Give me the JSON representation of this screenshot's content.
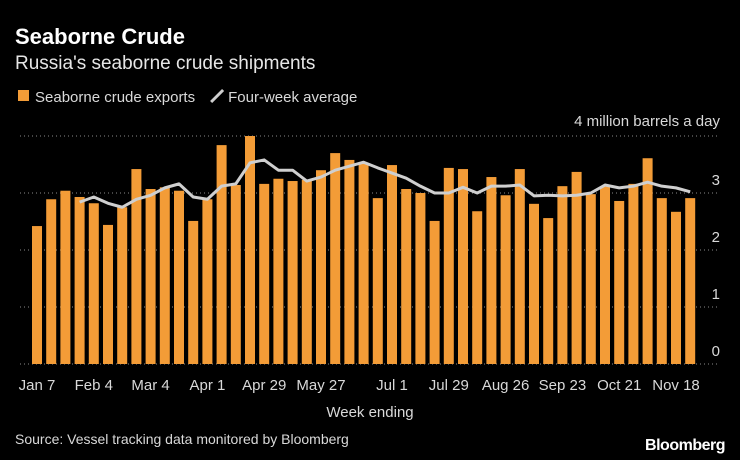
{
  "chart_data": {
    "type": "bar",
    "title": "Seaborne Crude",
    "subtitle": "Russia's seaborne crude shipments",
    "x_label": "Week ending",
    "source": "Source: Vessel tracking data monitored by Bloomberg",
    "brand": "Bloomberg",
    "categories": [
      "Jan 7",
      null,
      null,
      null,
      "Feb 4",
      null,
      null,
      null,
      "Mar 4",
      null,
      null,
      null,
      "Apr 1",
      null,
      null,
      null,
      "Apr 29",
      null,
      null,
      null,
      "May 27",
      null,
      null,
      null,
      null,
      "Jul 1",
      null,
      null,
      null,
      "Jul 29",
      null,
      null,
      null,
      "Aug 26",
      null,
      null,
      null,
      "Sep 23",
      null,
      null,
      null,
      "Oct 21",
      null,
      null,
      null,
      "Nov 18",
      null
    ],
    "series": [
      {
        "name": "Seaborne crude exports",
        "type": "bar",
        "color": "#f39c37",
        "values": [
          2.42,
          2.89,
          3.04,
          2.93,
          2.82,
          2.44,
          2.75,
          3.42,
          3.07,
          3.1,
          3.04,
          2.51,
          2.89,
          3.84,
          3.14,
          4.0,
          3.16,
          3.25,
          3.21,
          3.23,
          3.4,
          3.7,
          3.58,
          3.53,
          2.91,
          3.49,
          3.07,
          3.0,
          2.51,
          3.44,
          3.42,
          2.68,
          3.28,
          2.96,
          3.42,
          2.81,
          2.56,
          3.12,
          3.37,
          2.98,
          3.12,
          2.86,
          3.16,
          3.61,
          2.91,
          2.67,
          2.91
        ]
      },
      {
        "name": "Four-week average",
        "type": "line",
        "color": "#cfcfcf",
        "values": [
          null,
          null,
          null,
          2.84,
          2.93,
          2.82,
          2.75,
          2.89,
          2.96,
          3.09,
          3.16,
          2.93,
          2.89,
          3.12,
          3.16,
          3.53,
          3.58,
          3.4,
          3.4,
          3.21,
          3.28,
          3.4,
          3.47,
          3.54,
          3.44,
          3.35,
          3.26,
          3.12,
          3.0,
          3.0,
          3.1,
          3.0,
          3.12,
          3.12,
          3.14,
          2.95,
          2.96,
          2.95,
          2.96,
          3.0,
          3.14,
          3.09,
          3.12,
          3.19,
          3.12,
          3.09,
          3.02
        ]
      }
    ],
    "ylim": [
      0,
      4
    ],
    "yticks": [
      0,
      1,
      2,
      3,
      {
        "value": 4,
        "label": "4 million barrels a day"
      }
    ],
    "grid": true
  }
}
